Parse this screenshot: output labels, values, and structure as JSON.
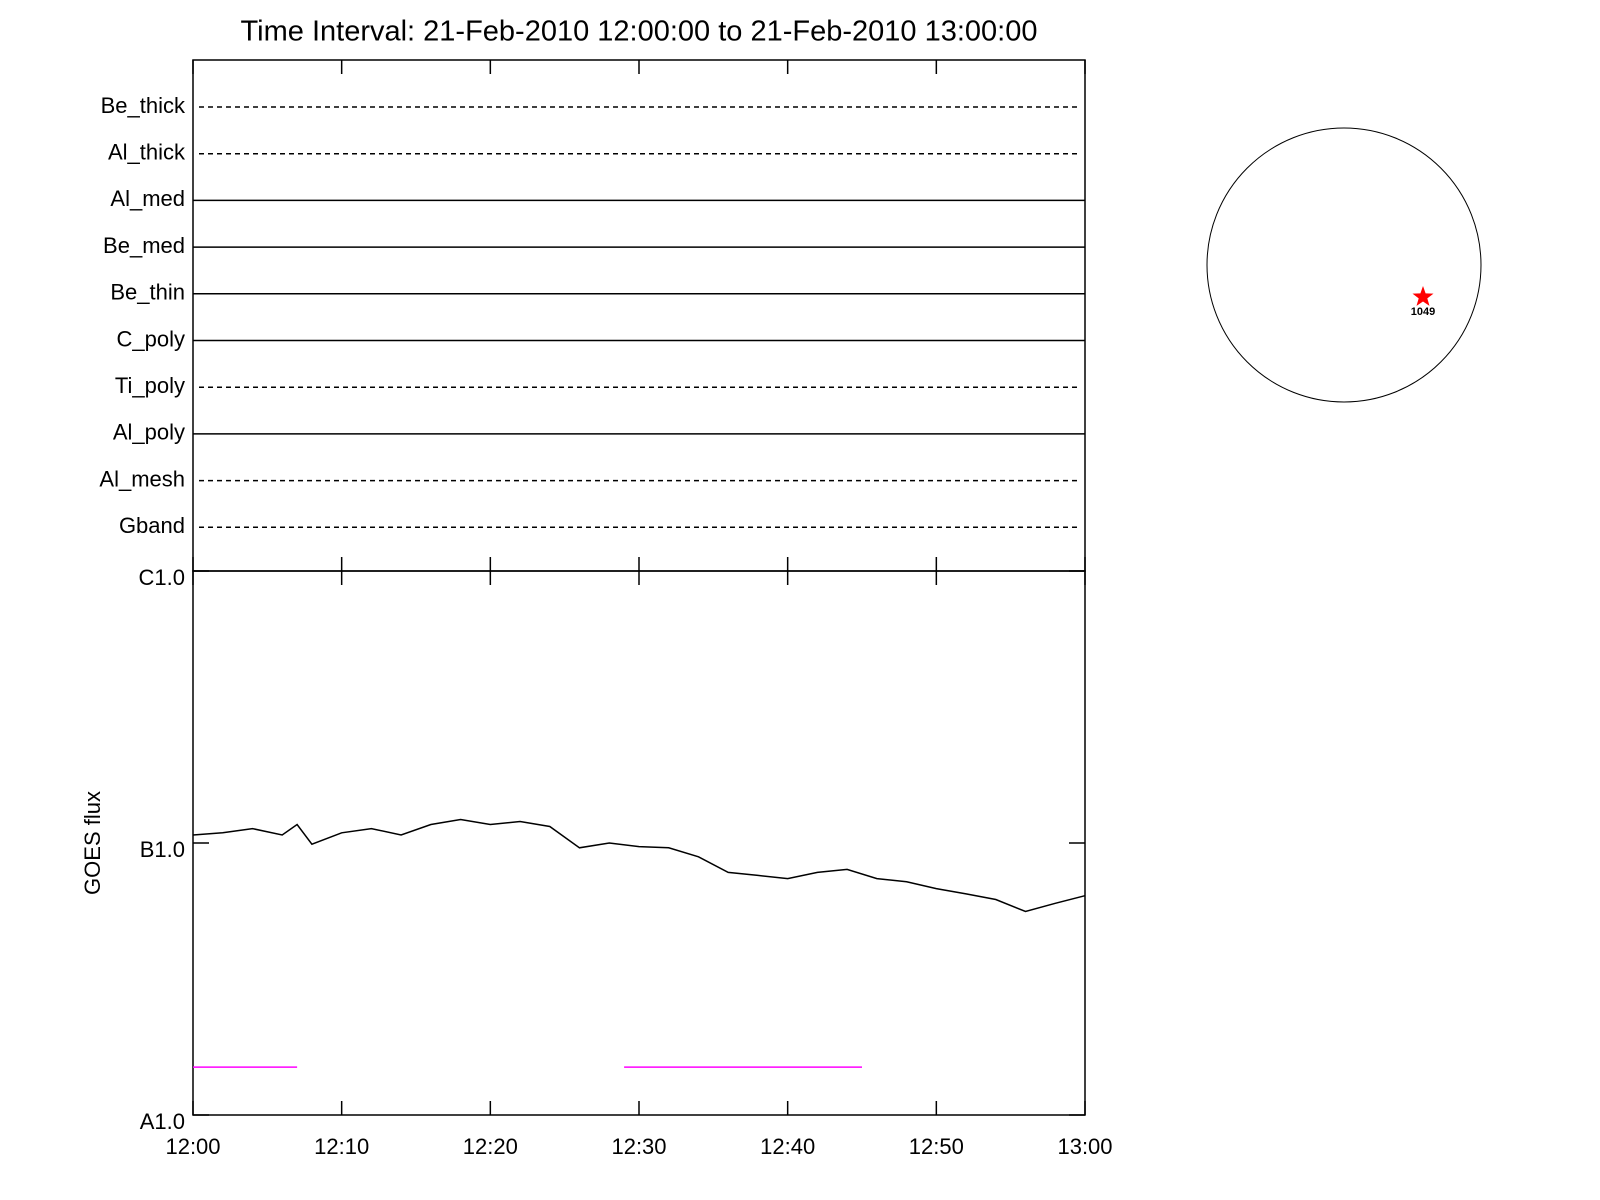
{
  "chart_data": [
    {
      "type": "timeline",
      "title": "Time Interval: 21-Feb-2010 12:00:00 to 21-Feb-2010 13:00:00",
      "categories": [
        "Be_thick",
        "Al_thick",
        "Al_med",
        "Be_med",
        "Be_thin",
        "C_poly",
        "Ti_poly",
        "Al_poly",
        "Al_mesh",
        "Gband"
      ],
      "line_styles": [
        "dashed",
        "dashed",
        "solid",
        "solid",
        "solid",
        "solid",
        "dashed",
        "solid",
        "dashed",
        "dashed"
      ],
      "color": "#000000"
    },
    {
      "type": "line",
      "ylabel": "GOES flux",
      "log_y": true,
      "xlim": [
        "12:00",
        "13:00"
      ],
      "xticks": [
        "12:00",
        "12:10",
        "12:20",
        "12:30",
        "12:40",
        "12:50",
        "13:00"
      ],
      "ylim": [
        1e-08,
        1e-06
      ],
      "yticks": [
        {
          "value": 1e-06,
          "label": "C1.0"
        },
        {
          "value": 1e-07,
          "label": "B1.0"
        },
        {
          "value": 1e-08,
          "label": "A1.0"
        }
      ],
      "series": [
        {
          "color": "#000000",
          "x": [
            "12:00",
            "12:02",
            "12:04",
            "12:06",
            "12:07",
            "12:08",
            "12:10",
            "12:12",
            "12:14",
            "12:16",
            "12:18",
            "12:20",
            "12:22",
            "12:24",
            "12:26",
            "12:28",
            "12:30",
            "12:32",
            "12:34",
            "12:36",
            "12:38",
            "12:40",
            "12:42",
            "12:44",
            "12:46",
            "12:48",
            "12:50",
            "12:52",
            "12:54",
            "12:56",
            "12:58",
            "13:00"
          ],
          "values": [
            1.07e-07,
            1.09e-07,
            1.13e-07,
            1.07e-07,
            1.17e-07,
            9.9e-08,
            1.09e-07,
            1.13e-07,
            1.07e-07,
            1.17e-07,
            1.22e-07,
            1.17e-07,
            1.2e-07,
            1.15e-07,
            9.6e-08,
            1e-07,
            9.7e-08,
            9.6e-08,
            8.9e-08,
            7.8e-08,
            7.6e-08,
            7.4e-08,
            7.8e-08,
            8e-08,
            7.4e-08,
            7.2e-08,
            6.8e-08,
            6.5e-08,
            6.2e-08,
            5.6e-08,
            6e-08,
            6.4e-08
          ]
        },
        {
          "color": "#ff00ff",
          "x": [
            "12:00",
            "12:07"
          ],
          "values": [
            1.5e-08,
            1.5e-08
          ]
        },
        {
          "color": "#ff00ff",
          "x": [
            "12:29",
            "12:45"
          ],
          "values": [
            1.5e-08,
            1.5e-08
          ]
        }
      ]
    },
    {
      "type": "disk",
      "label": "1049",
      "marker_color": "#ff0000"
    }
  ]
}
